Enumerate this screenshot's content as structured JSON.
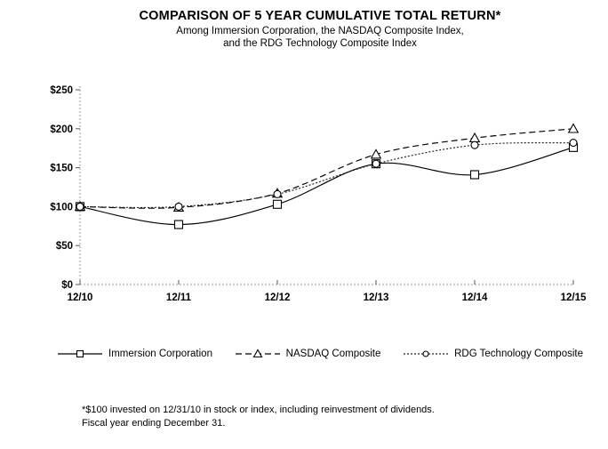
{
  "title": "COMPARISON OF 5 YEAR CUMULATIVE TOTAL RETURN*",
  "subtitle_line1": "Among Immersion Corporation, the NASDAQ  Composite Index,",
  "subtitle_line2": "and the RDG Technology Composite Index",
  "footnote_line1": "*$100 invested on 12/31/10 in stock or index, including reinvestment of dividends.",
  "footnote_line2": "Fiscal year ending December 31.",
  "chart_data": {
    "type": "line",
    "title": "COMPARISON OF 5 YEAR CUMULATIVE TOTAL RETURN*",
    "categories": [
      "12/10",
      "12/11",
      "12/12",
      "12/13",
      "12/14",
      "12/15"
    ],
    "series": [
      {
        "name": "Immersion Corporation",
        "line": "solid",
        "marker": "square",
        "color": "#000000",
        "values": [
          100,
          77,
          103,
          155,
          141,
          176
        ]
      },
      {
        "name": "NASDAQ Composite",
        "line": "dashed",
        "marker": "triangle",
        "color": "#000000",
        "values": [
          100,
          99,
          117,
          167,
          188,
          200
        ]
      },
      {
        "name": "RDG Technology Composite",
        "line": "dotted",
        "marker": "circle",
        "color": "#222222",
        "values": [
          100,
          100,
          116,
          155,
          179,
          182
        ]
      }
    ],
    "ylim": [
      0,
      250
    ],
    "yticks": [
      "$0",
      "$50",
      "$100",
      "$150",
      "$200",
      "$250"
    ],
    "ytick_values": [
      0,
      50,
      100,
      150,
      200,
      250
    ],
    "xlabel": "",
    "ylabel": "",
    "grid": false,
    "legend_position": "bottom",
    "axis_color": "#999999",
    "tick_color": "#555555",
    "smoothed": true
  }
}
